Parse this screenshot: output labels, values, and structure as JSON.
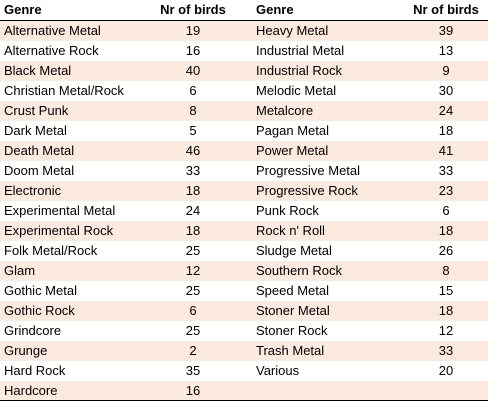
{
  "header": {
    "genre_label_left": "Genre",
    "count_label_left": "Nr of birds",
    "genre_label_right": "Genre",
    "count_label_right": "Nr of birds"
  },
  "rows": [
    {
      "g1": "Alternative Metal",
      "n1": "19",
      "g2": "Heavy Metal",
      "n2": "39"
    },
    {
      "g1": "Alternative Rock",
      "n1": "16",
      "g2": "Industrial Metal",
      "n2": "13"
    },
    {
      "g1": "Black Metal",
      "n1": "40",
      "g2": "Industrial Rock",
      "n2": "9"
    },
    {
      "g1": "Christian Metal/Rock",
      "n1": "6",
      "g2": "Melodic Metal",
      "n2": "30"
    },
    {
      "g1": "Crust Punk",
      "n1": "8",
      "g2": "Metalcore",
      "n2": "24"
    },
    {
      "g1": "Dark Metal",
      "n1": "5",
      "g2": "Pagan Metal",
      "n2": "18"
    },
    {
      "g1": "Death Metal",
      "n1": "46",
      "g2": "Power Metal",
      "n2": "41"
    },
    {
      "g1": "Doom Metal",
      "n1": "33",
      "g2": "Progressive Metal",
      "n2": "33"
    },
    {
      "g1": "Electronic",
      "n1": "18",
      "g2": "Progressive Rock",
      "n2": "23"
    },
    {
      "g1": "Experimental Metal",
      "n1": "24",
      "g2": "Punk Rock",
      "n2": "6"
    },
    {
      "g1": "Experimental Rock",
      "n1": "18",
      "g2": "Rock n' Roll",
      "n2": "18"
    },
    {
      "g1": "Folk Metal/Rock",
      "n1": "25",
      "g2": "Sludge Metal",
      "n2": "26"
    },
    {
      "g1": "Glam",
      "n1": "12",
      "g2": "Southern Rock",
      "n2": "8"
    },
    {
      "g1": "Gothic Metal",
      "n1": "25",
      "g2": "Speed Metal",
      "n2": "15"
    },
    {
      "g1": "Gothic Rock",
      "n1": "6",
      "g2": "Stoner Metal",
      "n2": "18"
    },
    {
      "g1": "Grindcore",
      "n1": "25",
      "g2": "Stoner Rock",
      "n2": "12"
    },
    {
      "g1": "Grunge",
      "n1": "2",
      "g2": "Trash Metal",
      "n2": "33"
    },
    {
      "g1": "Hard Rock",
      "n1": "35",
      "g2": "Various",
      "n2": "20"
    },
    {
      "g1": "Hardcore",
      "n1": "16",
      "g2": "",
      "n2": ""
    }
  ],
  "colors": {
    "shaded_row": "#fce9df",
    "plain_row": "#ffffff",
    "rule": "#000000"
  }
}
